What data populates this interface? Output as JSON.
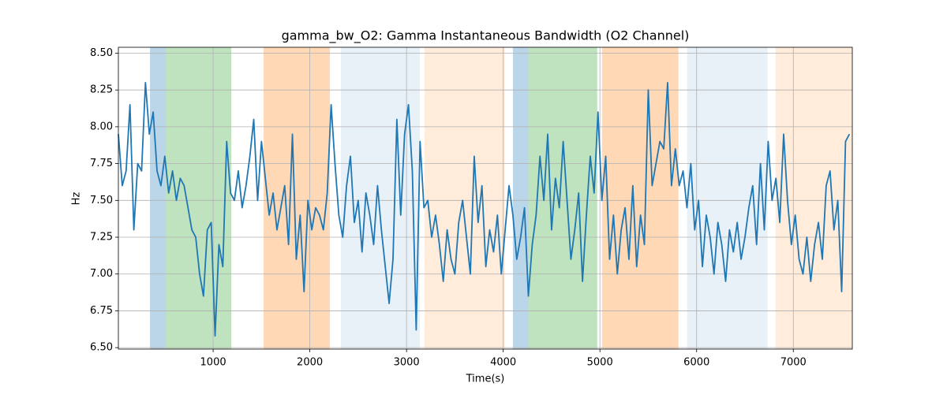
{
  "chart_data": {
    "type": "line",
    "title": "gamma_bw_O2: Gamma Instantaneous Bandwidth (O2 Channel)",
    "x_label": "Time(s)",
    "y_label": "Hz",
    "xlim": [
      20,
      7610
    ],
    "ylim": [
      6.49,
      8.54
    ],
    "xticks": [
      1000,
      2000,
      3000,
      4000,
      5000,
      6000,
      7000
    ],
    "yticks": [
      {
        "value": 6.5,
        "label": "6.50"
      },
      {
        "value": 6.75,
        "label": "6.75"
      },
      {
        "value": 7.0,
        "label": "7.00"
      },
      {
        "value": 7.25,
        "label": "7.25"
      },
      {
        "value": 7.5,
        "label": "7.50"
      },
      {
        "value": 7.75,
        "label": "7.75"
      },
      {
        "value": 8.0,
        "label": "8.00"
      },
      {
        "value": 8.25,
        "label": "8.25"
      },
      {
        "value": 8.5,
        "label": "8.50"
      }
    ],
    "grid": true,
    "spans": [
      {
        "start": 347,
        "end": 511,
        "color": "#1f77b4",
        "alpha": 0.3
      },
      {
        "start": 511,
        "end": 1188,
        "color": "#2ca02c",
        "alpha": 0.3
      },
      {
        "start": 1522,
        "end": 2207,
        "color": "#ff7f0e",
        "alpha": 0.3
      },
      {
        "start": 2321,
        "end": 3137,
        "color": "#1f77b4",
        "alpha": 0.1
      },
      {
        "start": 3186,
        "end": 4018,
        "color": "#ff7f0e",
        "alpha": 0.15
      },
      {
        "start": 4100,
        "end": 4263,
        "color": "#1f77b4",
        "alpha": 0.3
      },
      {
        "start": 4263,
        "end": 4972,
        "color": "#2ca02c",
        "alpha": 0.3
      },
      {
        "start": 5021,
        "end": 5812,
        "color": "#ff7f0e",
        "alpha": 0.3
      },
      {
        "start": 5902,
        "end": 6734,
        "color": "#1f77b4",
        "alpha": 0.1
      },
      {
        "start": 6816,
        "end": 7610,
        "color": "#ff7f0e",
        "alpha": 0.15
      }
    ],
    "x": [
      20,
      60,
      100,
      140,
      180,
      220,
      260,
      300,
      340,
      380,
      420,
      460,
      500,
      540,
      580,
      620,
      660,
      700,
      740,
      780,
      820,
      860,
      900,
      940,
      980,
      1020,
      1060,
      1100,
      1140,
      1180,
      1220,
      1260,
      1300,
      1340,
      1380,
      1420,
      1460,
      1500,
      1540,
      1580,
      1620,
      1660,
      1700,
      1740,
      1780,
      1820,
      1860,
      1900,
      1940,
      1980,
      2020,
      2060,
      2100,
      2140,
      2180,
      2220,
      2260,
      2300,
      2340,
      2380,
      2420,
      2460,
      2500,
      2540,
      2580,
      2620,
      2660,
      2700,
      2740,
      2780,
      2820,
      2860,
      2900,
      2940,
      2980,
      3020,
      3060,
      3100,
      3140,
      3180,
      3220,
      3260,
      3300,
      3340,
      3380,
      3420,
      3460,
      3500,
      3540,
      3580,
      3620,
      3660,
      3700,
      3740,
      3780,
      3820,
      3860,
      3900,
      3940,
      3980,
      4020,
      4060,
      4100,
      4140,
      4180,
      4220,
      4260,
      4300,
      4340,
      4380,
      4420,
      4460,
      4500,
      4540,
      4580,
      4620,
      4660,
      4700,
      4740,
      4780,
      4820,
      4860,
      4900,
      4940,
      4980,
      5020,
      5060,
      5100,
      5140,
      5180,
      5220,
      5260,
      5300,
      5340,
      5380,
      5420,
      5460,
      5500,
      5540,
      5580,
      5620,
      5660,
      5700,
      5740,
      5780,
      5820,
      5860,
      5900,
      5940,
      5980,
      6020,
      6060,
      6100,
      6140,
      6180,
      6220,
      6260,
      6300,
      6340,
      6380,
      6420,
      6460,
      6500,
      6540,
      6580,
      6620,
      6660,
      6700,
      6740,
      6780,
      6820,
      6860,
      6900,
      6940,
      6980,
      7020,
      7060,
      7100,
      7140,
      7180,
      7220,
      7260,
      7300,
      7340,
      7380,
      7420,
      7460,
      7500,
      7540,
      7580
    ],
    "series": [
      {
        "color": "#1f77b4",
        "values": [
          7.95,
          7.6,
          7.7,
          8.15,
          7.3,
          7.75,
          7.7,
          8.3,
          7.95,
          8.1,
          7.7,
          7.6,
          7.8,
          7.55,
          7.7,
          7.5,
          7.65,
          7.6,
          7.45,
          7.3,
          7.25,
          7.0,
          6.85,
          7.3,
          7.35,
          6.58,
          7.2,
          7.05,
          7.9,
          7.55,
          7.5,
          7.7,
          7.45,
          7.6,
          7.8,
          8.05,
          7.5,
          7.9,
          7.65,
          7.4,
          7.55,
          7.3,
          7.45,
          7.6,
          7.2,
          7.95,
          7.1,
          7.4,
          6.88,
          7.5,
          7.3,
          7.45,
          7.4,
          7.3,
          7.55,
          8.15,
          7.75,
          7.4,
          7.25,
          7.6,
          7.8,
          7.35,
          7.5,
          7.15,
          7.55,
          7.4,
          7.2,
          7.6,
          7.3,
          7.05,
          6.8,
          7.1,
          8.05,
          7.4,
          7.95,
          8.15,
          7.7,
          6.62,
          7.9,
          7.45,
          7.5,
          7.25,
          7.4,
          7.2,
          6.95,
          7.3,
          7.1,
          7.0,
          7.35,
          7.5,
          7.25,
          7.0,
          7.8,
          7.35,
          7.6,
          7.05,
          7.3,
          7.15,
          7.4,
          7.0,
          7.3,
          7.6,
          7.4,
          7.1,
          7.25,
          7.45,
          6.85,
          7.2,
          7.4,
          7.8,
          7.5,
          7.95,
          7.3,
          7.65,
          7.45,
          7.9,
          7.5,
          7.1,
          7.3,
          7.55,
          6.95,
          7.4,
          7.8,
          7.55,
          8.1,
          7.5,
          7.8,
          7.1,
          7.4,
          7.0,
          7.3,
          7.45,
          7.1,
          7.6,
          7.05,
          7.4,
          7.2,
          8.25,
          7.6,
          7.75,
          7.9,
          7.85,
          8.3,
          7.6,
          7.85,
          7.6,
          7.7,
          7.45,
          7.75,
          7.3,
          7.5,
          7.05,
          7.4,
          7.25,
          7.0,
          7.35,
          7.2,
          6.95,
          7.3,
          7.15,
          7.35,
          7.1,
          7.25,
          7.45,
          7.6,
          7.2,
          7.75,
          7.3,
          7.9,
          7.5,
          7.65,
          7.35,
          7.95,
          7.5,
          7.2,
          7.4,
          7.1,
          7.0,
          7.25,
          6.95,
          7.2,
          7.35,
          7.1,
          7.6,
          7.7,
          7.3,
          7.5,
          6.88,
          7.9,
          7.95
        ]
      }
    ]
  }
}
